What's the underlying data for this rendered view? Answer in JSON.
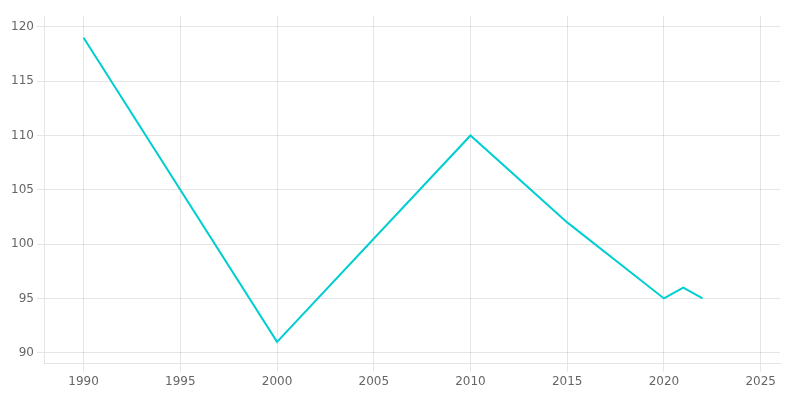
{
  "chart_data": {
    "type": "line",
    "x": [
      1990,
      2000,
      2010,
      2015,
      2020,
      2021,
      2022
    ],
    "values": [
      119,
      91,
      110,
      102,
      95,
      96,
      95
    ],
    "color": "#00CED1",
    "xlim": [
      1988,
      2026
    ],
    "xticks": [
      1990,
      1995,
      2000,
      2005,
      2010,
      2015,
      2020,
      2025
    ],
    "ylim": [
      89,
      121
    ],
    "yticks": [
      90,
      95,
      100,
      105,
      110,
      115,
      120
    ],
    "grid": true
  }
}
